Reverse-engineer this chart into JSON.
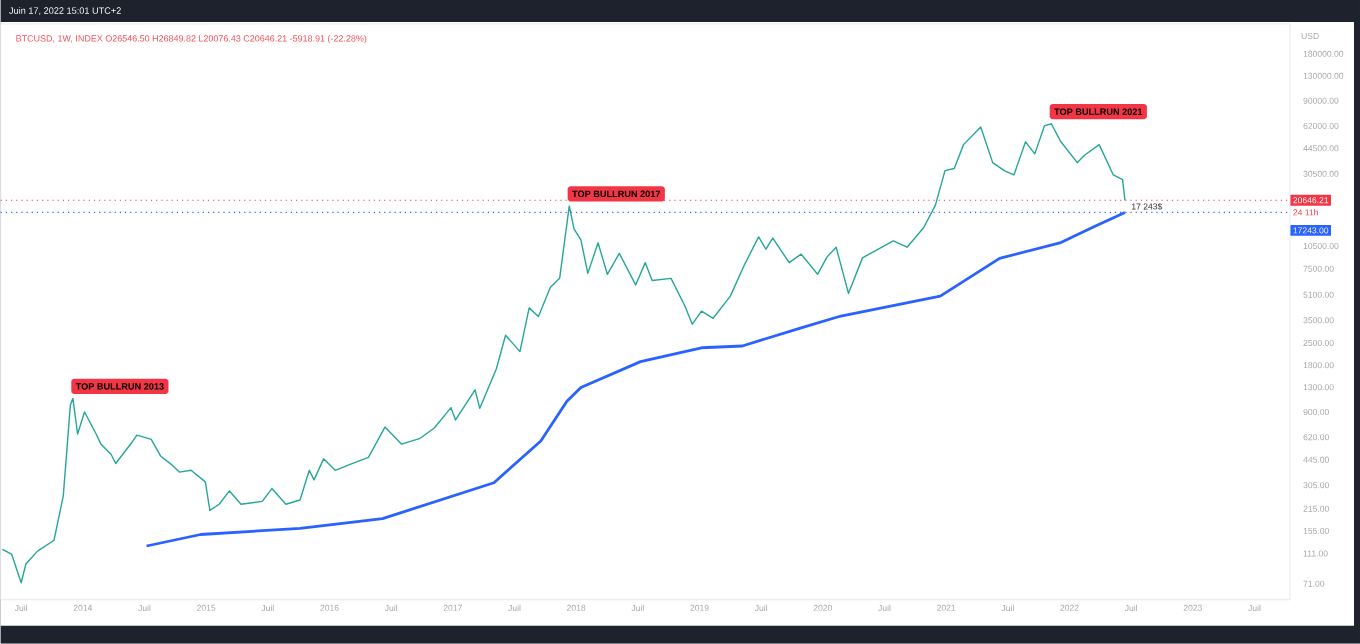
{
  "chart_data": {
    "type": "line",
    "title": "BTCUSD, 1W, INDEX O26546.50 H26849.82 L20076.43 C20646.21 -5918.91 (-22.28%)",
    "subtitle": "Juin 17, 2022 15:01 UTC+2",
    "ylabel": "USD",
    "log": "y",
    "xlim": [
      "2013-05-01",
      "2023-10-15"
    ],
    "ylim": [
      56,
      280000
    ],
    "xticks": [
      {
        "value": "2013-07",
        "label": "Juil"
      },
      {
        "value": "2014-01",
        "label": "2014"
      },
      {
        "value": "2014-07",
        "label": "Juil"
      },
      {
        "value": "2015-01",
        "label": "2015"
      },
      {
        "value": "2015-07",
        "label": "Juil"
      },
      {
        "value": "2016-01",
        "label": "2016"
      },
      {
        "value": "2016-07",
        "label": "Juil"
      },
      {
        "value": "2017-01",
        "label": "2017"
      },
      {
        "value": "2017-07",
        "label": "Juil"
      },
      {
        "value": "2018-01",
        "label": "2018"
      },
      {
        "value": "2018-07",
        "label": "Juil"
      },
      {
        "value": "2019-01",
        "label": "2019"
      },
      {
        "value": "2019-07",
        "label": "Juil"
      },
      {
        "value": "2020-01",
        "label": "2020"
      },
      {
        "value": "2020-07",
        "label": "Juil"
      },
      {
        "value": "2021-01",
        "label": "2021"
      },
      {
        "value": "2021-07",
        "label": "Juil"
      },
      {
        "value": "2022-01",
        "label": "2022"
      },
      {
        "value": "2022-07",
        "label": "Juil"
      },
      {
        "value": "2023-01",
        "label": "2023"
      },
      {
        "value": "2023-07",
        "label": "Juil"
      }
    ],
    "yticks": [
      {
        "value": 71,
        "label": "71.00"
      },
      {
        "value": 111,
        "label": "111.00"
      },
      {
        "value": 155,
        "label": "155.00"
      },
      {
        "value": 215,
        "label": "215.00"
      },
      {
        "value": 305,
        "label": "305.00"
      },
      {
        "value": 445,
        "label": "445.00"
      },
      {
        "value": 620,
        "label": "620.00"
      },
      {
        "value": 900,
        "label": "900.00"
      },
      {
        "value": 1300,
        "label": "1300.00"
      },
      {
        "value": 1800,
        "label": "1800.00"
      },
      {
        "value": 2500,
        "label": "2500.00"
      },
      {
        "value": 3500,
        "label": "3500.00"
      },
      {
        "value": 5100,
        "label": "5100.00"
      },
      {
        "value": 7500,
        "label": "7500.00"
      },
      {
        "value": 10500,
        "label": "10500.00"
      },
      {
        "value": 30500,
        "label": "30500.00"
      },
      {
        "value": 44500,
        "label": "44500.00"
      },
      {
        "value": 62000,
        "label": "62000.00"
      },
      {
        "value": 90000,
        "label": "90000.00"
      },
      {
        "value": 130000,
        "label": "130000.00"
      },
      {
        "value": 180000,
        "label": "180000.00"
      }
    ],
    "series": [
      {
        "color": "#26a69a",
        "x": [
          "2013-05-06",
          "2013-06-03",
          "2013-07-01",
          "2013-07-15",
          "2013-08-19",
          "2013-10-07",
          "2013-11-04",
          "2013-11-25",
          "2013-12-02",
          "2013-12-16",
          "2014-01-06",
          "2014-02-10",
          "2014-02-24",
          "2014-03-24",
          "2014-04-07",
          "2014-05-26",
          "2014-06-09",
          "2014-07-21",
          "2014-08-18",
          "2014-09-22",
          "2014-10-13",
          "2014-11-17",
          "2014-12-29",
          "2015-01-12",
          "2015-02-09",
          "2015-03-09",
          "2015-04-13",
          "2015-06-15",
          "2015-07-13",
          "2015-08-24",
          "2015-10-05",
          "2015-11-02",
          "2015-11-16",
          "2015-12-14",
          "2016-01-18",
          "2016-03-07",
          "2016-04-25",
          "2016-06-13",
          "2016-08-01",
          "2016-09-26",
          "2016-11-07",
          "2016-12-26",
          "2017-01-09",
          "2017-03-06",
          "2017-03-20",
          "2017-05-08",
          "2017-06-05",
          "2017-07-17",
          "2017-08-14",
          "2017-09-11",
          "2017-10-16",
          "2017-11-13",
          "2017-12-11",
          "2017-12-25",
          "2018-01-15",
          "2018-02-05",
          "2018-03-05",
          "2018-04-02",
          "2018-05-07",
          "2018-06-25",
          "2018-07-23",
          "2018-08-13",
          "2018-10-08",
          "2018-11-19",
          "2018-12-10",
          "2019-01-07",
          "2019-02-11",
          "2019-04-01",
          "2019-05-13",
          "2019-06-24",
          "2019-07-15",
          "2019-08-05",
          "2019-09-23",
          "2019-10-28",
          "2019-12-16",
          "2020-01-13",
          "2020-02-10",
          "2020-03-16",
          "2020-04-27",
          "2020-06-01",
          "2020-07-27",
          "2020-09-07",
          "2020-10-26",
          "2020-11-30",
          "2020-12-28",
          "2021-01-25",
          "2021-02-22",
          "2021-04-12",
          "2021-05-17",
          "2021-06-21",
          "2021-07-19",
          "2021-08-23",
          "2021-09-20",
          "2021-10-18",
          "2021-11-08",
          "2021-12-06",
          "2022-01-24",
          "2022-02-14",
          "2022-03-28",
          "2022-05-09",
          "2022-06-06",
          "2022-06-13"
        ],
        "values": [
          118,
          110,
          72,
          95,
          115,
          135,
          260,
          1000,
          1100,
          650,
          900,
          650,
          560,
          480,
          420,
          580,
          640,
          600,
          470,
          410,
          370,
          380,
          320,
          210,
          230,
          280,
          230,
          240,
          290,
          230,
          245,
          380,
          330,
          450,
          380,
          420,
          460,
          720,
          560,
          610,
          710,
          960,
          800,
          1250,
          950,
          1700,
          2800,
          2200,
          4200,
          3700,
          5700,
          6500,
          19000,
          13500,
          11500,
          7000,
          11000,
          6900,
          9400,
          5900,
          8200,
          6300,
          6500,
          4300,
          3300,
          4000,
          3600,
          5000,
          8000,
          12000,
          10000,
          11800,
          8200,
          9300,
          6900,
          8900,
          10300,
          5200,
          8800,
          9700,
          11300,
          10300,
          13800,
          19200,
          32000,
          33000,
          47000,
          61000,
          36000,
          32000,
          30000,
          49000,
          41000,
          62000,
          64000,
          49000,
          36000,
          40000,
          47000,
          30000,
          28000,
          20646.21
        ]
      },
      {
        "color": "#2962ff",
        "x": [
          "2014-07-07",
          "2014-12-15",
          "2015-10-05",
          "2016-06-06",
          "2017-05-01",
          "2017-09-18",
          "2017-12-04",
          "2018-01-15",
          "2018-07-09",
          "2019-01-07",
          "2019-05-06",
          "2019-10-28",
          "2020-02-24",
          "2020-12-14",
          "2021-06-07",
          "2021-12-06",
          "2022-03-14",
          "2022-06-13"
        ],
        "values": [
          124,
          147,
          161,
          186,
          316,
          586,
          1055,
          1294,
          1897,
          2328,
          2390,
          3126,
          3724,
          5000,
          8730,
          11040,
          14000,
          17243
        ]
      }
    ],
    "ref_lines": [
      {
        "axis": "y",
        "value": 20646.21,
        "label": "20646.21",
        "color": "#f23645",
        "line_style": "dotted"
      },
      {
        "axis": "y",
        "value": 17243,
        "label": "17243.00",
        "color": "#2962ff",
        "line_style": "dotted"
      }
    ],
    "annotations": [
      {
        "text": "TOP BULLRUN 2013",
        "x": "2013-12-02",
        "y": 1100
      },
      {
        "text": "TOP BULLRUN 2017",
        "x": "2017-12-11",
        "y": 19000
      },
      {
        "text": "TOP BULLRUN 2021",
        "x": "2021-11-08",
        "y": 64000
      },
      {
        "text": "17 243$",
        "x": "2022-06-13",
        "y": 17243
      },
      "24 11h"
    ]
  }
}
